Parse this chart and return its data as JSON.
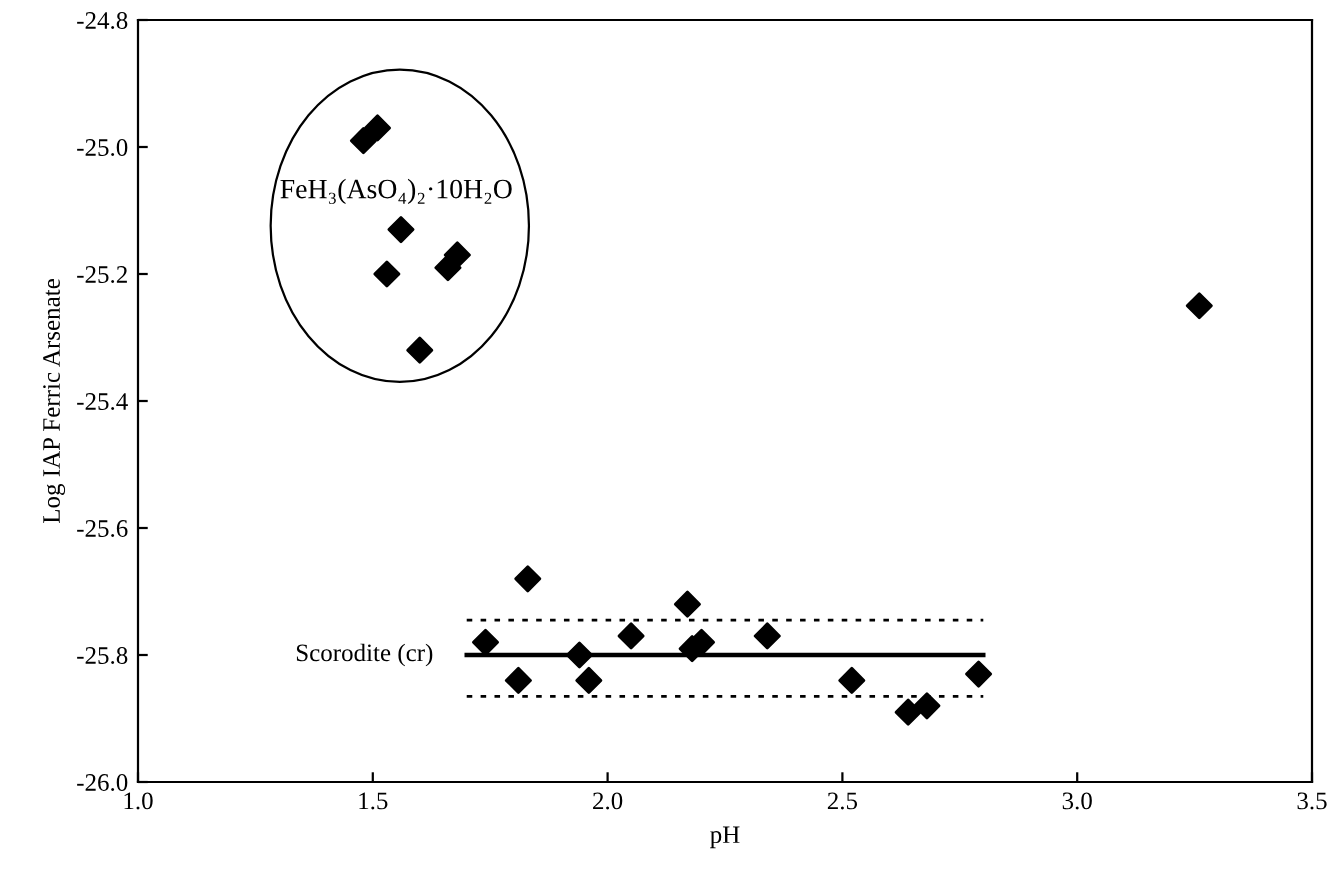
{
  "chart_data": {
    "type": "scatter",
    "xlabel": "pH",
    "ylabel": "Log IAP Ferric Arsenate",
    "xlim": [
      1.0,
      3.5
    ],
    "ylim": [
      -26.0,
      -24.8
    ],
    "xticks": [
      {
        "value": 1.0,
        "label": "1.0"
      },
      {
        "value": 1.5,
        "label": "1.5"
      },
      {
        "value": 2.0,
        "label": "2.0"
      },
      {
        "value": 2.5,
        "label": "2.5"
      },
      {
        "value": 3.0,
        "label": "3.0"
      },
      {
        "value": 3.5,
        "label": "3.5"
      }
    ],
    "yticks": [
      {
        "value": -26.0,
        "label": "-26.0"
      },
      {
        "value": -25.8,
        "label": "-25.8"
      },
      {
        "value": -25.6,
        "label": "-25.6"
      },
      {
        "value": -25.4,
        "label": "-25.4"
      },
      {
        "value": -25.2,
        "label": "-25.2"
      },
      {
        "value": -25.0,
        "label": "-25.0"
      },
      {
        "value": -24.8,
        "label": "-24.8"
      }
    ],
    "grid": false,
    "legend": false,
    "series": [
      {
        "color": "#000000",
        "marker": "diamond",
        "x": [
          1.48,
          1.51,
          1.56,
          1.53,
          1.66,
          1.68,
          1.6,
          3.26,
          1.74,
          1.83,
          1.81,
          1.94,
          1.96,
          2.05,
          2.17,
          2.18,
          2.2,
          2.34,
          2.52,
          2.64,
          2.68,
          2.79
        ],
        "values": [
          -24.99,
          -24.97,
          -25.13,
          -25.2,
          -25.19,
          -25.17,
          -25.32,
          -25.25,
          -25.78,
          -25.68,
          -25.84,
          -25.8,
          -25.84,
          -25.77,
          -25.72,
          -25.79,
          -25.78,
          -25.77,
          -25.84,
          -25.89,
          -25.88,
          -25.83
        ]
      },
      {
        "type": "line",
        "color": "#000000",
        "line_style": "solid",
        "marker": "none",
        "x": [
          1.7,
          2.8
        ],
        "values": [
          -25.8,
          -25.8
        ]
      },
      {
        "type": "line",
        "color": "#000000",
        "line_style": "dotted",
        "marker": "none",
        "x": [
          1.7,
          2.8
        ],
        "values": [
          -25.745,
          -25.745
        ]
      },
      {
        "type": "line",
        "color": "#000000",
        "line_style": "dotted",
        "marker": "none",
        "x": [
          1.7,
          2.8
        ],
        "values": [
          -25.865,
          -25.865
        ]
      }
    ],
    "annotations": [
      "FeH₃(AsO₄)₂·10H₂O",
      {
        "text": "Scorodite (cr)",
        "x": 1.7,
        "y": -25.8
      }
    ]
  }
}
